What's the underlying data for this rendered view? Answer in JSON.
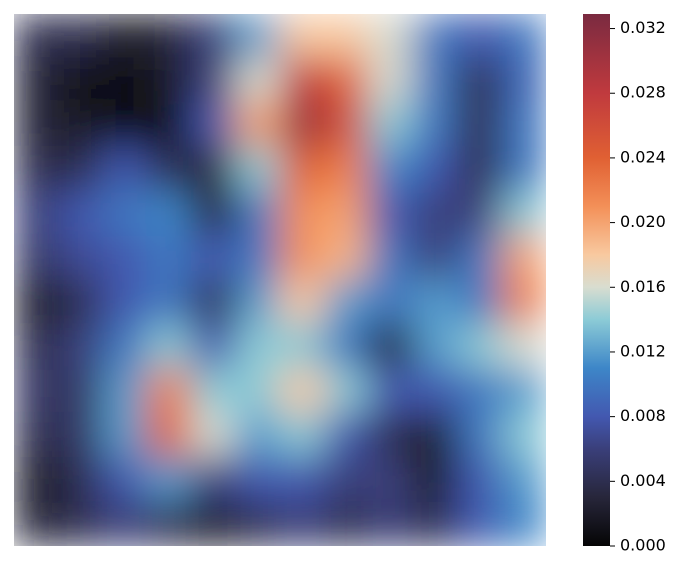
{
  "chart_data": {
    "type": "contourf",
    "z": [
      [
        0.004,
        0.004,
        0.002,
        0.003,
        0.006,
        0.012,
        0.018,
        0.018,
        0.016,
        0.01,
        0.008,
        0.01
      ],
      [
        0.003,
        0.001,
        0.001,
        0.002,
        0.006,
        0.016,
        0.028,
        0.024,
        0.016,
        0.01,
        0.004,
        0.009
      ],
      [
        0.003,
        0.002,
        0.001,
        0.001,
        0.008,
        0.02,
        0.031,
        0.026,
        0.014,
        0.01,
        0.004,
        0.01
      ],
      [
        0.004,
        0.004,
        0.008,
        0.004,
        0.003,
        0.014,
        0.024,
        0.022,
        0.011,
        0.008,
        0.004,
        0.01
      ],
      [
        0.006,
        0.008,
        0.01,
        0.011,
        0.003,
        0.01,
        0.021,
        0.02,
        0.008,
        0.006,
        0.006,
        0.014
      ],
      [
        0.005,
        0.007,
        0.008,
        0.01,
        0.008,
        0.01,
        0.021,
        0.019,
        0.01,
        0.006,
        0.01,
        0.02
      ],
      [
        0.002,
        0.004,
        0.008,
        0.01,
        0.004,
        0.012,
        0.018,
        0.012,
        0.01,
        0.012,
        0.01,
        0.022
      ],
      [
        0.004,
        0.006,
        0.01,
        0.014,
        0.008,
        0.014,
        0.014,
        0.01,
        0.002,
        0.012,
        0.014,
        0.016
      ],
      [
        0.005,
        0.005,
        0.012,
        0.022,
        0.014,
        0.014,
        0.018,
        0.014,
        0.008,
        0.008,
        0.01,
        0.012
      ],
      [
        0.004,
        0.005,
        0.012,
        0.024,
        0.016,
        0.012,
        0.014,
        0.008,
        0.004,
        0.002,
        0.01,
        0.014
      ],
      [
        0.002,
        0.004,
        0.008,
        0.012,
        0.006,
        0.008,
        0.008,
        0.006,
        0.006,
        0.002,
        0.008,
        0.012
      ],
      [
        0.003,
        0.004,
        0.006,
        0.004,
        0.002,
        0.004,
        0.006,
        0.004,
        0.006,
        0.004,
        0.008,
        0.011
      ]
    ],
    "zlim": [
      0,
      0.0329
    ],
    "colorbar_ticks": [
      {
        "value": 0,
        "label": "0.000"
      },
      {
        "value": 0.004,
        "label": "0.004"
      },
      {
        "value": 0.008,
        "label": "0.008"
      },
      {
        "value": 0.012,
        "label": "0.012"
      },
      {
        "value": 0.016,
        "label": "0.016"
      },
      {
        "value": 0.02,
        "label": "0.020"
      },
      {
        "value": 0.024,
        "label": "0.024"
      },
      {
        "value": 0.028,
        "label": "0.028"
      },
      {
        "value": 0.032,
        "label": "0.032"
      }
    ],
    "colormap": [
      [
        0,
        "#050505"
      ],
      [
        0.003,
        "#27263a"
      ],
      [
        0.006,
        "#3a3f7a"
      ],
      [
        0.008,
        "#4358b0"
      ],
      [
        0.011,
        "#3d86c8"
      ],
      [
        0.014,
        "#8ccbd6"
      ],
      [
        0.016,
        "#d8ddd0"
      ],
      [
        0.018,
        "#f8c9a0"
      ],
      [
        0.021,
        "#f39058"
      ],
      [
        0.024,
        "#e06033"
      ],
      [
        0.028,
        "#c03a3e"
      ],
      [
        0.0329,
        "#7a2a40"
      ]
    ]
  }
}
